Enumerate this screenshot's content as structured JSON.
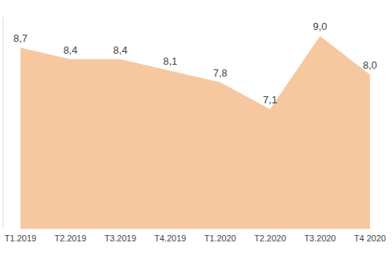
{
  "chart_data": {
    "type": "area",
    "categories": [
      "T1.2019",
      "T2.2019",
      "T3.2019",
      "T4.2019",
      "T1.2020",
      "T2.2020",
      "T3.2020",
      "T4 2020"
    ],
    "values": [
      8.7,
      8.4,
      8.4,
      8.1,
      7.8,
      7.1,
      9.0,
      8.0
    ],
    "value_labels": [
      "8,7",
      "8,4",
      "8,4",
      "8,1",
      "7,8",
      "7,1",
      "9,0",
      "8,0"
    ],
    "color": "#F6C89F",
    "ylim": [
      4,
      9.5
    ],
    "data_labels": true,
    "tick_labels": "x",
    "grid": false
  }
}
